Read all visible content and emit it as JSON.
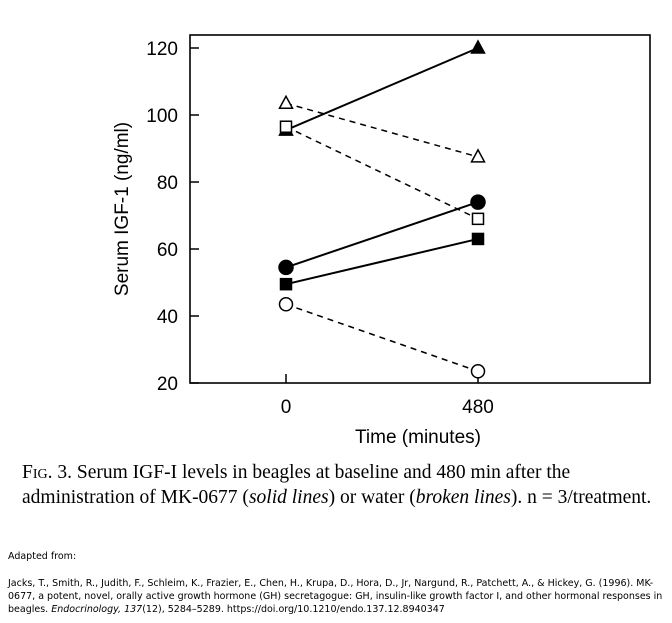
{
  "chart_data": {
    "type": "line",
    "xlabel": "Time (minutes)",
    "ylabel": "Serum IGF-1 (ng/ml)",
    "x": [
      0,
      480
    ],
    "x_tick_labels": [
      "0",
      "480"
    ],
    "ylim": [
      20,
      120
    ],
    "y_ticks": [
      20,
      40,
      60,
      80,
      100,
      120
    ],
    "grid": false,
    "series": [
      {
        "marker": "filled-triangle",
        "line": "solid",
        "values": [
          95.5,
          120
        ]
      },
      {
        "marker": "filled-circle",
        "line": "solid",
        "values": [
          54.5,
          74
        ]
      },
      {
        "marker": "filled-square",
        "line": "solid",
        "values": [
          49.5,
          63
        ]
      },
      {
        "marker": "open-triangle",
        "line": "dashed",
        "values": [
          103.5,
          87.5
        ]
      },
      {
        "marker": "open-square",
        "line": "dashed",
        "values": [
          96.5,
          69
        ]
      },
      {
        "marker": "open-circle",
        "line": "dashed",
        "values": [
          43.5,
          23.5
        ]
      }
    ]
  },
  "caption": {
    "fig_label": "Fig. 3.",
    "text_1": " Serum IGF-I levels in beagles at baseline and 480 min after the administration of MK-0677 (",
    "solid_text": "solid lines",
    "text_2": ") or water (",
    "broken_text": "broken lines",
    "text_3": "). n = 3/treatment."
  },
  "adapted_from": "Adapted from:",
  "citation": {
    "text_1": "Jacks, T., Smith, R., Judith, F., Schleim, K., Frazier, E., Chen, H., Krupa, D., Hora, D., Jr, Nargund, R., Patchett, A., & Hickey, G. (1996). MK-0677, a potent, novel, orally active growth hormone (GH) secretagogue: GH, insulin-like growth factor I, and other hormonal responses in beagles. ",
    "journal": "Endocrinology, 137",
    "text_2": "(12), 5284–5289. https://doi.org/10.1210/endo.137.12.8940347"
  }
}
